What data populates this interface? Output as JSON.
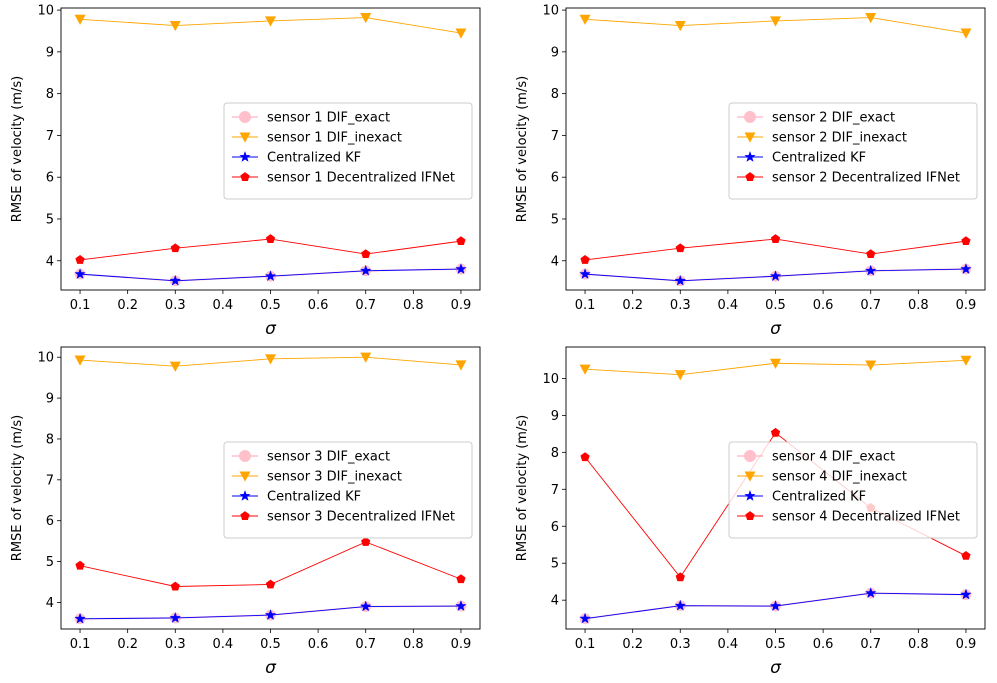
{
  "chart_data": [
    {
      "type": "line",
      "x": [
        0.1,
        0.3,
        0.5,
        0.7,
        0.9
      ],
      "xlabel": "σ",
      "ylabel": "RMSE of velocity (m/s)",
      "xlim": [
        0.06,
        0.94
      ],
      "ylim": [
        3.3,
        10.05
      ],
      "xticks": [
        "0.1",
        "0.2",
        "0.3",
        "0.4",
        "0.5",
        "0.6",
        "0.7",
        "0.8",
        "0.9"
      ],
      "yticks": [
        "4",
        "5",
        "6",
        "7",
        "8",
        "9",
        "10"
      ],
      "legend_position": "center-right",
      "series": [
        {
          "name": "sensor 1 DIF_exact",
          "color": "#ffc0cb",
          "marker": "circle",
          "values": [
            3.68,
            3.52,
            3.63,
            3.76,
            3.8
          ]
        },
        {
          "name": "sensor 1 DIF_inexact",
          "color": "#ffa500",
          "marker": "triangle-down",
          "values": [
            9.78,
            9.63,
            9.74,
            9.82,
            9.45
          ]
        },
        {
          "name": "Centralized KF",
          "color": "#0000ff",
          "marker": "star",
          "values": [
            3.68,
            3.52,
            3.63,
            3.76,
            3.8
          ]
        },
        {
          "name": "sensor 1 Decentralized IFNet",
          "color": "#ff0000",
          "marker": "pentagon",
          "values": [
            4.02,
            4.3,
            4.52,
            4.16,
            4.47
          ]
        }
      ]
    },
    {
      "type": "line",
      "x": [
        0.1,
        0.3,
        0.5,
        0.7,
        0.9
      ],
      "xlabel": "σ",
      "ylabel": "RMSE of velocity (m/s)",
      "xlim": [
        0.06,
        0.94
      ],
      "ylim": [
        3.3,
        10.05
      ],
      "xticks": [
        "0.1",
        "0.2",
        "0.3",
        "0.4",
        "0.5",
        "0.6",
        "0.7",
        "0.8",
        "0.9"
      ],
      "yticks": [
        "4",
        "5",
        "6",
        "7",
        "8",
        "9",
        "10"
      ],
      "legend_position": "center-right",
      "series": [
        {
          "name": "sensor 2 DIF_exact",
          "color": "#ffc0cb",
          "marker": "circle",
          "values": [
            3.68,
            3.52,
            3.63,
            3.76,
            3.8
          ]
        },
        {
          "name": "sensor 2 DIF_inexact",
          "color": "#ffa500",
          "marker": "triangle-down",
          "values": [
            9.78,
            9.63,
            9.74,
            9.82,
            9.45
          ]
        },
        {
          "name": "Centralized KF",
          "color": "#0000ff",
          "marker": "star",
          "values": [
            3.68,
            3.52,
            3.63,
            3.76,
            3.8
          ]
        },
        {
          "name": "sensor 2 Decentralized IFNet",
          "color": "#ff0000",
          "marker": "pentagon",
          "values": [
            4.02,
            4.3,
            4.52,
            4.16,
            4.47
          ]
        }
      ]
    },
    {
      "type": "line",
      "x": [
        0.1,
        0.3,
        0.5,
        0.7,
        0.9
      ],
      "xlabel": "σ",
      "ylabel": "RMSE of velocity (m/s)",
      "xlim": [
        0.06,
        0.94
      ],
      "ylim": [
        3.35,
        10.25
      ],
      "xticks": [
        "0.1",
        "0.2",
        "0.3",
        "0.4",
        "0.5",
        "0.6",
        "0.7",
        "0.8",
        "0.9"
      ],
      "yticks": [
        "4",
        "5",
        "6",
        "7",
        "8",
        "9",
        "10"
      ],
      "legend_position": "center-right",
      "series": [
        {
          "name": "sensor 3 DIF_exact",
          "color": "#ffc0cb",
          "marker": "circle",
          "values": [
            3.6,
            3.62,
            3.69,
            3.9,
            3.91
          ]
        },
        {
          "name": "sensor 3 DIF_inexact",
          "color": "#ffa500",
          "marker": "triangle-down",
          "values": [
            9.93,
            9.78,
            9.96,
            10.0,
            9.81
          ]
        },
        {
          "name": "Centralized KF",
          "color": "#0000ff",
          "marker": "star",
          "values": [
            3.6,
            3.62,
            3.69,
            3.9,
            3.91
          ]
        },
        {
          "name": "sensor 3 Decentralized IFNet",
          "color": "#ff0000",
          "marker": "pentagon",
          "values": [
            4.9,
            4.39,
            4.44,
            5.48,
            4.57
          ]
        }
      ]
    },
    {
      "type": "line",
      "x": [
        0.1,
        0.3,
        0.5,
        0.7,
        0.9
      ],
      "xlabel": "σ",
      "ylabel": "RMSE of velocity (m/s)",
      "xlim": [
        0.06,
        0.94
      ],
      "ylim": [
        3.22,
        10.85
      ],
      "xticks": [
        "0.1",
        "0.2",
        "0.3",
        "0.4",
        "0.5",
        "0.6",
        "0.7",
        "0.8",
        "0.9"
      ],
      "yticks": [
        "4",
        "5",
        "6",
        "7",
        "8",
        "9",
        "10"
      ],
      "legend_position": "center-right",
      "series": [
        {
          "name": "sensor 4 DIF_exact",
          "color": "#ffc0cb",
          "marker": "circle",
          "values": [
            3.5,
            3.85,
            3.84,
            4.19,
            4.15
          ]
        },
        {
          "name": "sensor 4 DIF_inexact",
          "color": "#ffa500",
          "marker": "triangle-down",
          "values": [
            10.25,
            10.1,
            10.41,
            10.36,
            10.49
          ]
        },
        {
          "name": "Centralized KF",
          "color": "#0000ff",
          "marker": "star",
          "values": [
            3.5,
            3.85,
            3.84,
            4.19,
            4.15
          ]
        },
        {
          "name": "sensor 4 Decentralized IFNet",
          "color": "#ff0000",
          "marker": "pentagon",
          "values": [
            7.87,
            4.62,
            8.53,
            6.5,
            5.2
          ]
        }
      ]
    }
  ]
}
